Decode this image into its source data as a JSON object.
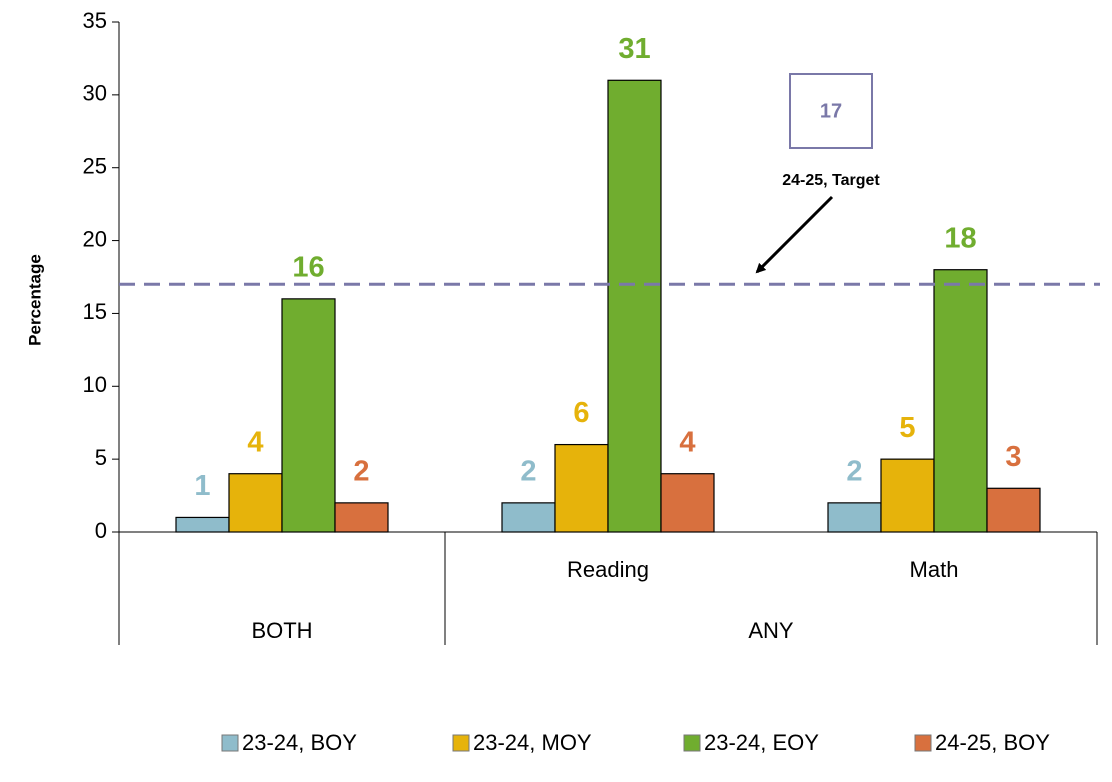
{
  "chart_data": {
    "type": "bar",
    "ylabel": "Percentage",
    "groups": [
      {
        "label": "BOTH",
        "categories": [
          null
        ]
      },
      {
        "label": "ANY",
        "categories": [
          "Reading",
          "Math"
        ]
      }
    ],
    "series": [
      {
        "name": "23-24, BOY",
        "color": "#8fbccb",
        "values": [
          1,
          2,
          2
        ]
      },
      {
        "name": "23-24, MOY",
        "color": "#e6b30b",
        "values": [
          4,
          6,
          5
        ]
      },
      {
        "name": "23-24, EOY",
        "color": "#70ad2f",
        "values": [
          16,
          31,
          18
        ]
      },
      {
        "name": "24-25, BOY",
        "color": "#d8703e",
        "values": [
          2,
          4,
          3
        ]
      }
    ],
    "ylim": [
      0,
      35
    ],
    "yticks": [
      0,
      5,
      10,
      15,
      20,
      25,
      30,
      35
    ],
    "target": {
      "value": 17,
      "label": "24-25, Target",
      "color": "#7a78a8"
    },
    "legend": "bottom"
  }
}
